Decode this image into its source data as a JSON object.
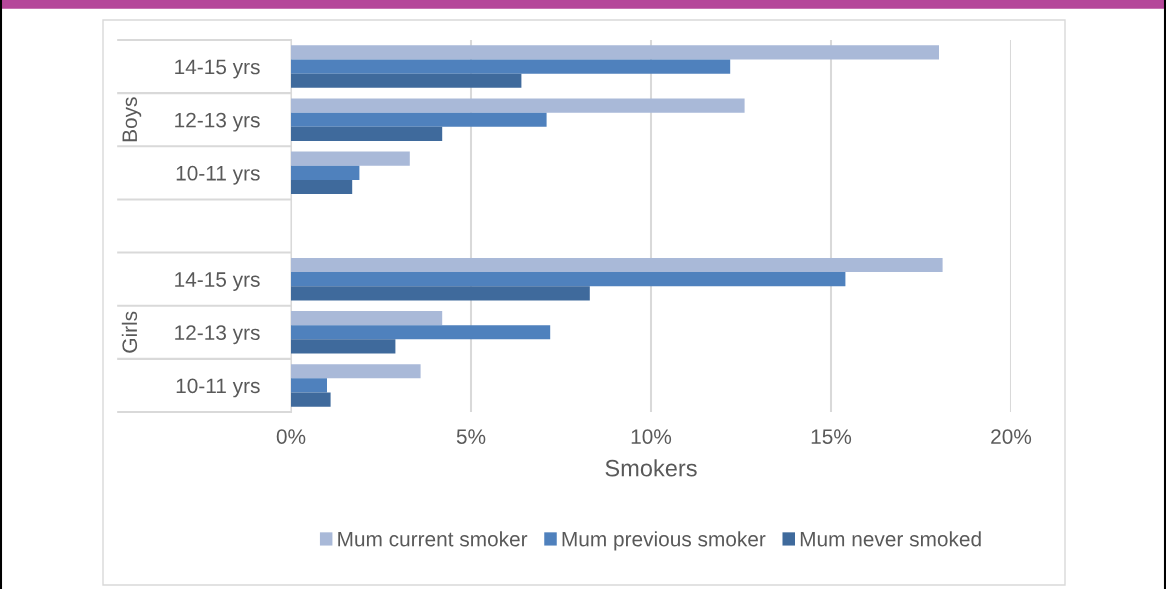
{
  "chart_data": {
    "type": "bar",
    "orientation": "horizontal",
    "categories": [
      "14-15 yrs",
      "12-13 yrs",
      "10-11 yrs",
      null,
      "14-15 yrs",
      "12-13 yrs",
      "10-11 yrs"
    ],
    "annotations": [
      "Boys",
      "Girls"
    ],
    "series": [
      {
        "name": "Mum current smoker",
        "color": "#a9b9d8",
        "values": [
          18.0,
          12.6,
          3.3,
          null,
          18.1,
          4.2,
          3.6
        ]
      },
      {
        "name": "Mum previous smoker",
        "color": "#4f81bd",
        "values": [
          12.2,
          7.1,
          1.9,
          null,
          15.4,
          7.2,
          1.0
        ]
      },
      {
        "name": "Mum never smoked",
        "color": "#3f6a9c",
        "values": [
          6.4,
          4.2,
          1.7,
          null,
          8.3,
          2.9,
          1.1
        ]
      }
    ],
    "xlabel": "Smokers",
    "xlim": [
      0,
      20
    ],
    "xticks": [
      {
        "value": 0,
        "label": "0%"
      },
      {
        "value": 5,
        "label": "5%"
      },
      {
        "value": 10,
        "label": "10%"
      },
      {
        "value": 15,
        "label": "15%"
      },
      {
        "value": 20,
        "label": "20%"
      }
    ],
    "grid": "x",
    "legend": "bottom"
  }
}
